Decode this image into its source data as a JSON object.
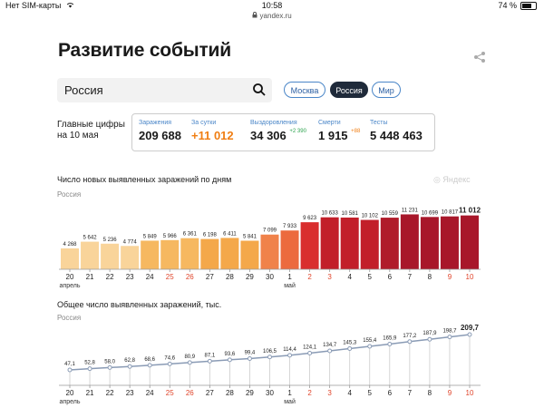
{
  "status": {
    "carrier": "Нет SIM-карты",
    "time": "10:58",
    "battery": "74 %",
    "battery_level": 0.74,
    "url": "yandex.ru"
  },
  "page": {
    "title": "Развитие событий"
  },
  "search": {
    "value": "Россия"
  },
  "regions": [
    {
      "label": "Москва",
      "active": false
    },
    {
      "label": "Россия",
      "active": true
    },
    {
      "label": "Мир",
      "active": false
    }
  ],
  "key_figures": {
    "heading_line1": "Главные цифры",
    "heading_line2": "на 10 мая",
    "infections": {
      "label": "Заражения",
      "value": "209 688"
    },
    "daily": {
      "label": "За сутки",
      "value": "+11 012"
    },
    "recovered": {
      "label": "Выздоровления",
      "value": "34 306",
      "delta": "+2 390"
    },
    "deaths": {
      "label": "Смерти",
      "value": "1 915",
      "delta": "+88"
    },
    "tests": {
      "label": "Тесты",
      "value": "5 448 463"
    }
  },
  "watermark": "Яндекс",
  "chart_data": [
    {
      "type": "bar",
      "title": "Число новых выявленных заражений по дням",
      "subtitle": "Россия",
      "categories": [
        "20",
        "21",
        "22",
        "23",
        "24",
        "25",
        "26",
        "27",
        "28",
        "29",
        "30",
        "1",
        "2",
        "3",
        "4",
        "5",
        "6",
        "7",
        "8",
        "9",
        "10"
      ],
      "month_labels": [
        {
          "index": 0,
          "text": "апрель"
        },
        {
          "index": 11,
          "text": "май"
        }
      ],
      "weekend_indices": [
        5,
        6,
        12,
        13,
        19,
        20
      ],
      "values": [
        4268,
        5642,
        5236,
        4774,
        5849,
        5966,
        6361,
        6198,
        6411,
        5841,
        7099,
        7933,
        9623,
        10633,
        10581,
        10102,
        10559,
        11231,
        10699,
        10817,
        11012
      ],
      "labels": [
        "4 268",
        "5 642",
        "5 236",
        "4 774",
        "5 849",
        "5 966",
        "6 361",
        "6 198",
        "6 411",
        "5 841",
        "7 099",
        "7 933",
        "9 623",
        "10 633",
        "10 581",
        "10 102",
        "10 559",
        "11 231",
        "10 699",
        "10 817",
        "11 012"
      ],
      "colors": [
        "#f9d49a",
        "#f9d49a",
        "#f9d49a",
        "#f9d49a",
        "#f6b860",
        "#f6b860",
        "#f6b860",
        "#f4a84a",
        "#f4a84a",
        "#f4a84a",
        "#f0824a",
        "#ec6a3e",
        "#d92e2e",
        "#c21f2a",
        "#c21f2a",
        "#c21f2a",
        "#b01c2a",
        "#a8172a",
        "#a8172a",
        "#a8172a",
        "#a8172a"
      ],
      "ylim": [
        0,
        11500
      ]
    },
    {
      "type": "line",
      "title": "Общее число выявленных заражений, тыс.",
      "subtitle": "Россия",
      "categories": [
        "20",
        "21",
        "22",
        "23",
        "24",
        "25",
        "26",
        "27",
        "28",
        "29",
        "30",
        "1",
        "2",
        "3",
        "4",
        "5",
        "6",
        "7",
        "8",
        "9",
        "10"
      ],
      "month_labels": [
        {
          "index": 0,
          "text": "апрель"
        },
        {
          "index": 11,
          "text": "май"
        }
      ],
      "weekend_indices": [
        5,
        6,
        12,
        13,
        19,
        20
      ],
      "values": [
        47.1,
        52.8,
        58.0,
        62.8,
        68.6,
        74.6,
        80.9,
        87.1,
        93.6,
        99.4,
        106.5,
        114.4,
        124.1,
        134.7,
        145.3,
        155.4,
        165.9,
        177.2,
        187.9,
        198.7,
        209.7
      ],
      "labels": [
        "47,1",
        "52,8",
        "58,0",
        "62,8",
        "68,6",
        "74,6",
        "80,9",
        "87,1",
        "93,6",
        "99,4",
        "106,5",
        "114,4",
        "124,1",
        "134,7",
        "145,3",
        "155,4",
        "165,9",
        "177,2",
        "187,9",
        "198,7",
        "209,7"
      ],
      "color": "#8a9bb5",
      "ylim": [
        0,
        220
      ]
    }
  ]
}
